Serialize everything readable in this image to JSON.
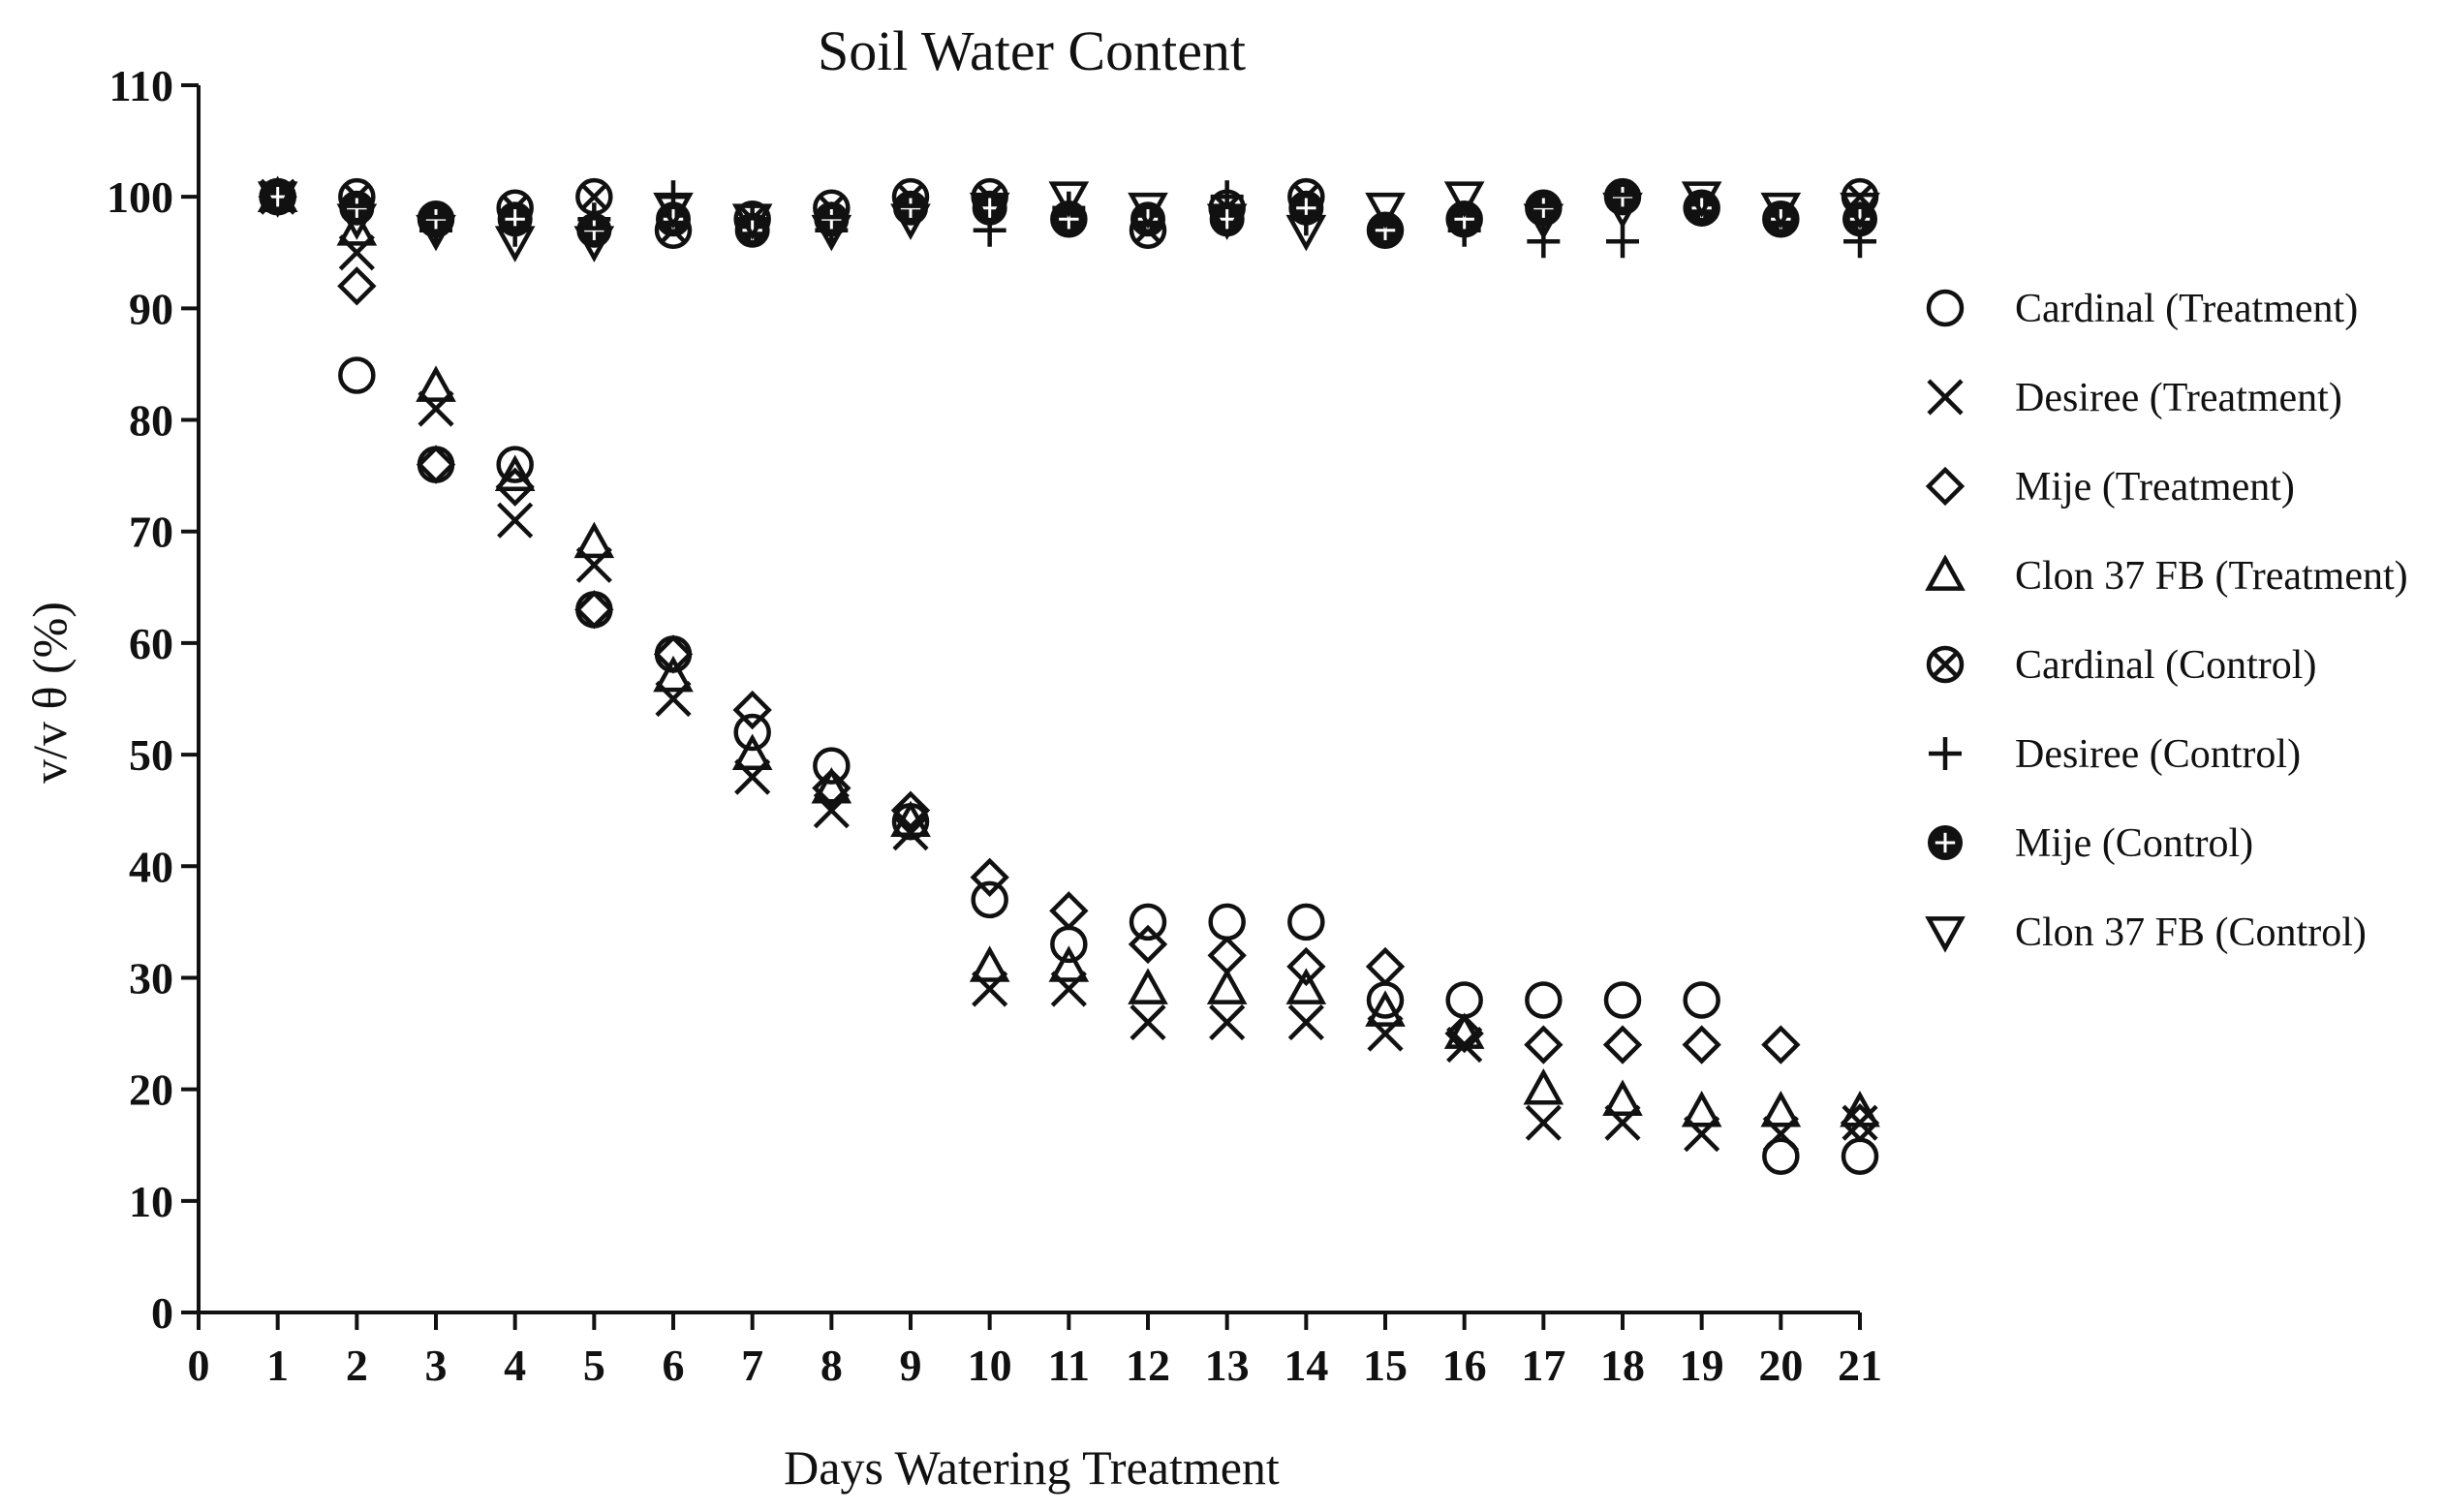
{
  "chart_data": {
    "type": "scatter",
    "title": "Soil Water Content",
    "xlabel": "Days Watering Treatment",
    "ylabel": "v/v θ (%)",
    "xlim": [
      0,
      21
    ],
    "ylim": [
      0,
      110
    ],
    "xticks": [
      0,
      1,
      2,
      3,
      4,
      5,
      6,
      7,
      8,
      9,
      10,
      11,
      12,
      13,
      14,
      15,
      16,
      17,
      18,
      19,
      20,
      21
    ],
    "yticks": [
      0,
      10,
      20,
      30,
      40,
      50,
      60,
      70,
      80,
      90,
      100,
      110
    ],
    "grid": false,
    "legend_position": "right",
    "series": [
      {
        "name": "Cardinal (Treatment)",
        "marker": "circle-open",
        "x": [
          1,
          2,
          3,
          4,
          5,
          6,
          7,
          8,
          9,
          10,
          11,
          12,
          13,
          14,
          15,
          16,
          17,
          18,
          19,
          20,
          21
        ],
        "y": [
          100,
          84,
          76,
          76,
          63,
          59,
          52,
          49,
          44,
          37,
          33,
          35,
          35,
          35,
          28,
          28,
          28,
          28,
          28,
          14,
          14
        ]
      },
      {
        "name": "Desiree (Treatment)",
        "marker": "x",
        "x": [
          1,
          2,
          3,
          4,
          5,
          6,
          7,
          8,
          9,
          10,
          11,
          12,
          13,
          14,
          15,
          16,
          17,
          18,
          19,
          20,
          21
        ],
        "y": [
          100,
          95,
          81,
          71,
          67,
          55,
          48,
          45,
          43,
          29,
          29,
          26,
          26,
          26,
          25,
          24,
          17,
          17,
          16,
          16,
          17
        ]
      },
      {
        "name": "Mije (Treatment)",
        "marker": "diamond-open",
        "x": [
          1,
          2,
          3,
          4,
          5,
          6,
          7,
          8,
          9,
          10,
          11,
          12,
          13,
          14,
          15,
          16,
          17,
          18,
          19,
          20,
          21
        ],
        "y": [
          100,
          92,
          76,
          74,
          63,
          59,
          54,
          47,
          45,
          39,
          36,
          33,
          32,
          31,
          31,
          25,
          24,
          24,
          24,
          24,
          17
        ]
      },
      {
        "name": "Clon 37 FB (Treatment)",
        "marker": "triangle-open",
        "x": [
          1,
          2,
          3,
          4,
          5,
          6,
          7,
          8,
          9,
          10,
          11,
          12,
          13,
          14,
          15,
          16,
          17,
          18,
          19,
          20,
          21
        ],
        "y": [
          100,
          97,
          83,
          75,
          69,
          57,
          50,
          47,
          44,
          31,
          31,
          29,
          29,
          29,
          27,
          25,
          20,
          19,
          18,
          18,
          18
        ]
      },
      {
        "name": "Cardinal (Control)",
        "marker": "circle-cross",
        "x": [
          1,
          2,
          3,
          4,
          5,
          6,
          7,
          8,
          9,
          10,
          11,
          12,
          13,
          14,
          15,
          16,
          17,
          18,
          19,
          20,
          21
        ],
        "y": [
          100,
          100,
          98,
          99,
          100,
          97,
          98,
          99,
          100,
          100,
          98,
          97,
          99,
          100,
          97,
          98,
          99,
          100,
          99,
          98,
          100
        ]
      },
      {
        "name": "Desiree (Control)",
        "marker": "plus",
        "x": [
          1,
          2,
          3,
          4,
          5,
          6,
          7,
          8,
          9,
          10,
          11,
          12,
          13,
          14,
          15,
          16,
          17,
          18,
          19,
          20,
          21
        ],
        "y": [
          100,
          99,
          97,
          97,
          98,
          100,
          98,
          97,
          99,
          97,
          99,
          98,
          100,
          98,
          97,
          97,
          96,
          96,
          99,
          98,
          96
        ]
      },
      {
        "name": "Mije (Control)",
        "marker": "circle-filled-cross",
        "x": [
          1,
          2,
          3,
          4,
          5,
          6,
          7,
          8,
          9,
          10,
          11,
          12,
          13,
          14,
          15,
          16,
          17,
          18,
          19,
          20,
          21
        ],
        "y": [
          100,
          99,
          98,
          98,
          97,
          98,
          97,
          98,
          99,
          99,
          98,
          98,
          98,
          99,
          97,
          98,
          99,
          100,
          99,
          98,
          98
        ]
      },
      {
        "name": "Clon 37 FB (Control)",
        "marker": "triangle-down-open",
        "x": [
          1,
          2,
          3,
          4,
          5,
          6,
          7,
          8,
          9,
          10,
          11,
          12,
          13,
          14,
          15,
          16,
          17,
          18,
          19,
          20,
          21
        ],
        "y": [
          100,
          98,
          97,
          96,
          96,
          99,
          98,
          97,
          98,
          99,
          100,
          99,
          98,
          97,
          99,
          100,
          98,
          99,
          100,
          99,
          99
        ]
      }
    ]
  }
}
